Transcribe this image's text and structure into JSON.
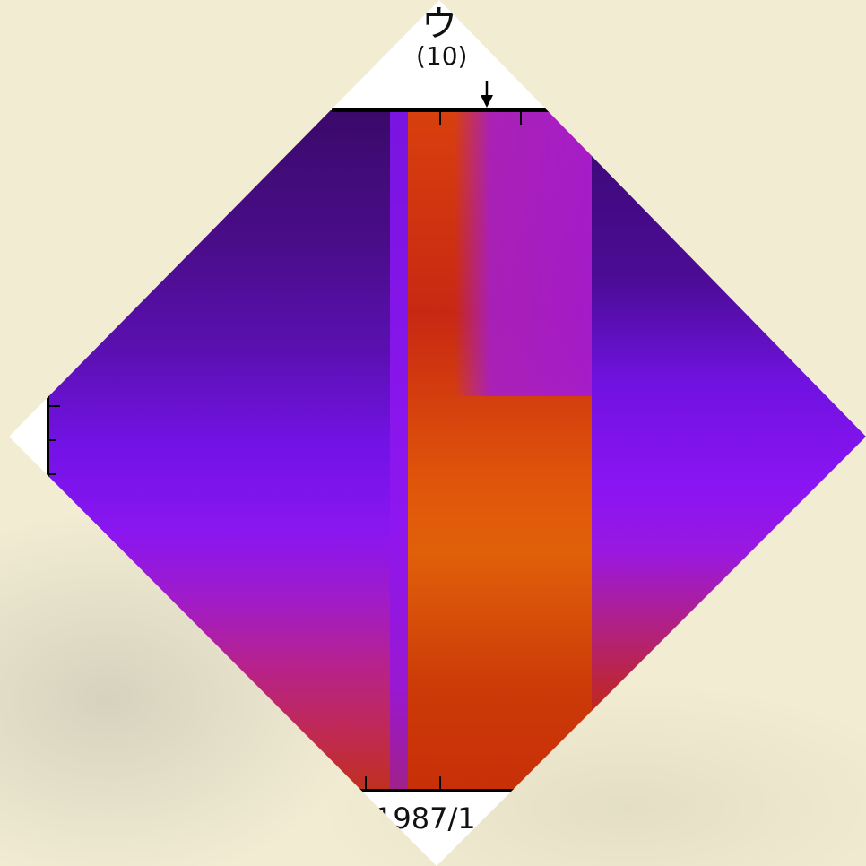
{
  "header": {
    "glyph": "ウ",
    "label": "(10)"
  },
  "axis": {
    "date": "1987/1"
  }
}
